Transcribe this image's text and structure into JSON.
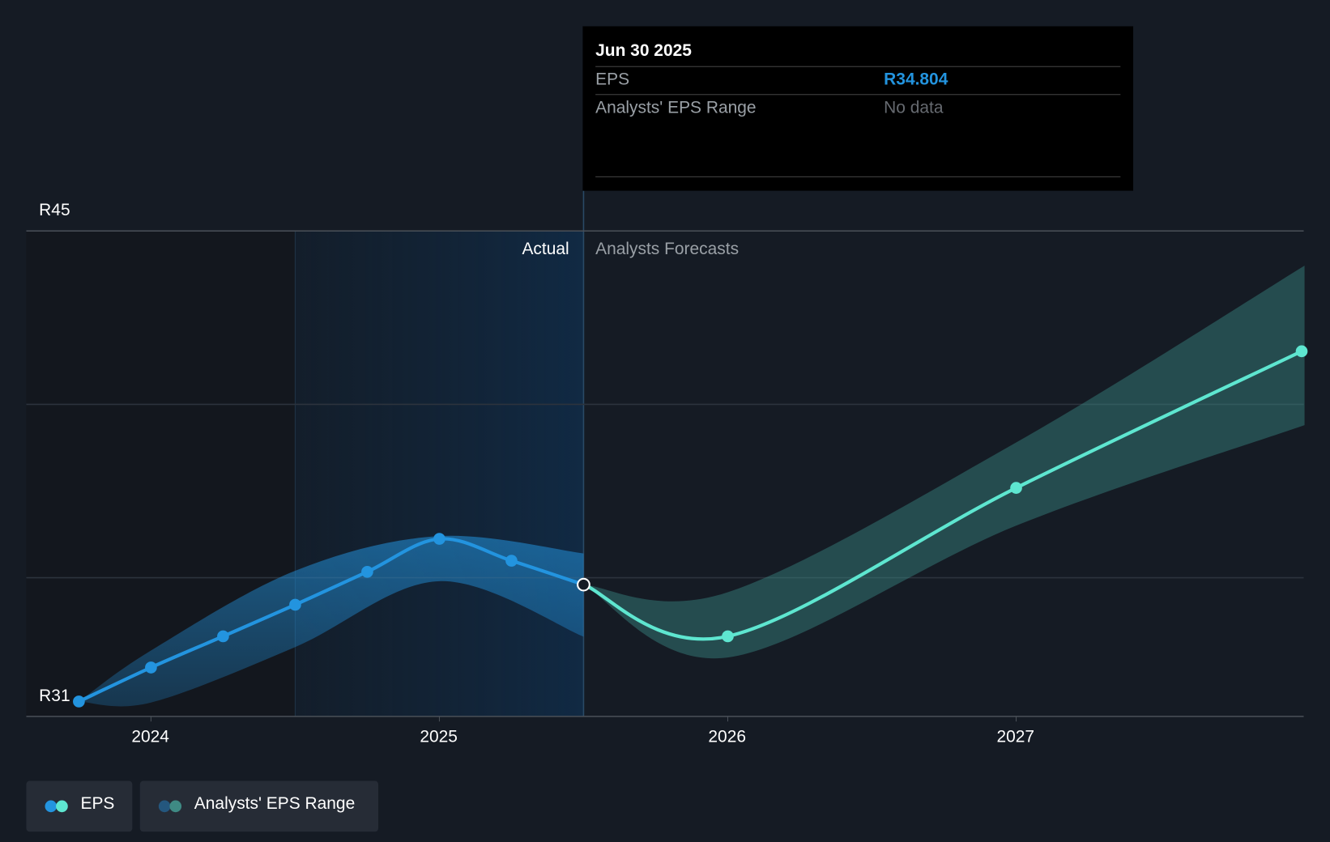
{
  "tooltip": {
    "date": "Jun 30 2025",
    "rows": [
      {
        "label": "EPS",
        "value": "R34.804",
        "color": "#2394df"
      },
      {
        "label": "Analysts' EPS Range",
        "value": "No data",
        "color": "#666a70"
      }
    ]
  },
  "legend": [
    {
      "label": "EPS"
    },
    {
      "label": "Analysts' EPS Range"
    }
  ],
  "chart_data": {
    "type": "line",
    "currency": "ZAR",
    "ylim": [
      31,
      45
    ],
    "y_ticks": [
      {
        "value": 45,
        "label": "R45"
      },
      {
        "value": 31,
        "label": "R31"
      }
    ],
    "y_gridlines": [
      35,
      40,
      45
    ],
    "x_ticks": [
      {
        "value": 2024,
        "label": "2024"
      },
      {
        "value": 2025,
        "label": "2025"
      },
      {
        "value": 2026,
        "label": "2026"
      },
      {
        "value": 2027,
        "label": "2027"
      }
    ],
    "xlim": [
      2023.6,
      2028.0
    ],
    "divider": 2025.5,
    "highlight_start": 2024.5,
    "region_labels": {
      "actual": "Actual",
      "forecast": "Analysts Forecasts"
    },
    "series": [
      {
        "name": "EPS (actual)",
        "color": "#2394df",
        "points": [
          [
            2023.75,
            31.43
          ],
          [
            2024.0,
            32.41
          ],
          [
            2024.25,
            33.31
          ],
          [
            2024.5,
            34.22
          ],
          [
            2024.75,
            35.17
          ],
          [
            2025.0,
            36.12
          ],
          [
            2025.25,
            35.49
          ],
          [
            2025.5,
            34.8
          ]
        ]
      },
      {
        "name": "EPS (forecast)",
        "color": "#5ee6d0",
        "points": [
          [
            2025.5,
            34.8
          ],
          [
            2026.0,
            33.31
          ],
          [
            2027.0,
            37.59
          ],
          [
            2027.99,
            41.53
          ]
        ]
      }
    ],
    "ranges": [
      {
        "name": "Analysts' EPS Range (historic)",
        "color": "#2394df",
        "x": [
          2023.75,
          2024.0,
          2024.5,
          2025.0,
          2025.5
        ],
        "high": [
          31.43,
          32.9,
          35.2,
          36.2,
          35.7
        ],
        "low": [
          31.43,
          31.4,
          33.0,
          34.9,
          33.3
        ]
      },
      {
        "name": "Analysts' EPS Range (forecast)",
        "color": "#3a8a84",
        "x": [
          2025.5,
          2026.0,
          2027.0,
          2028.0
        ],
        "high": [
          34.8,
          34.58,
          38.9,
          44.0
        ],
        "low": [
          34.8,
          32.7,
          36.5,
          39.4
        ]
      }
    ]
  }
}
